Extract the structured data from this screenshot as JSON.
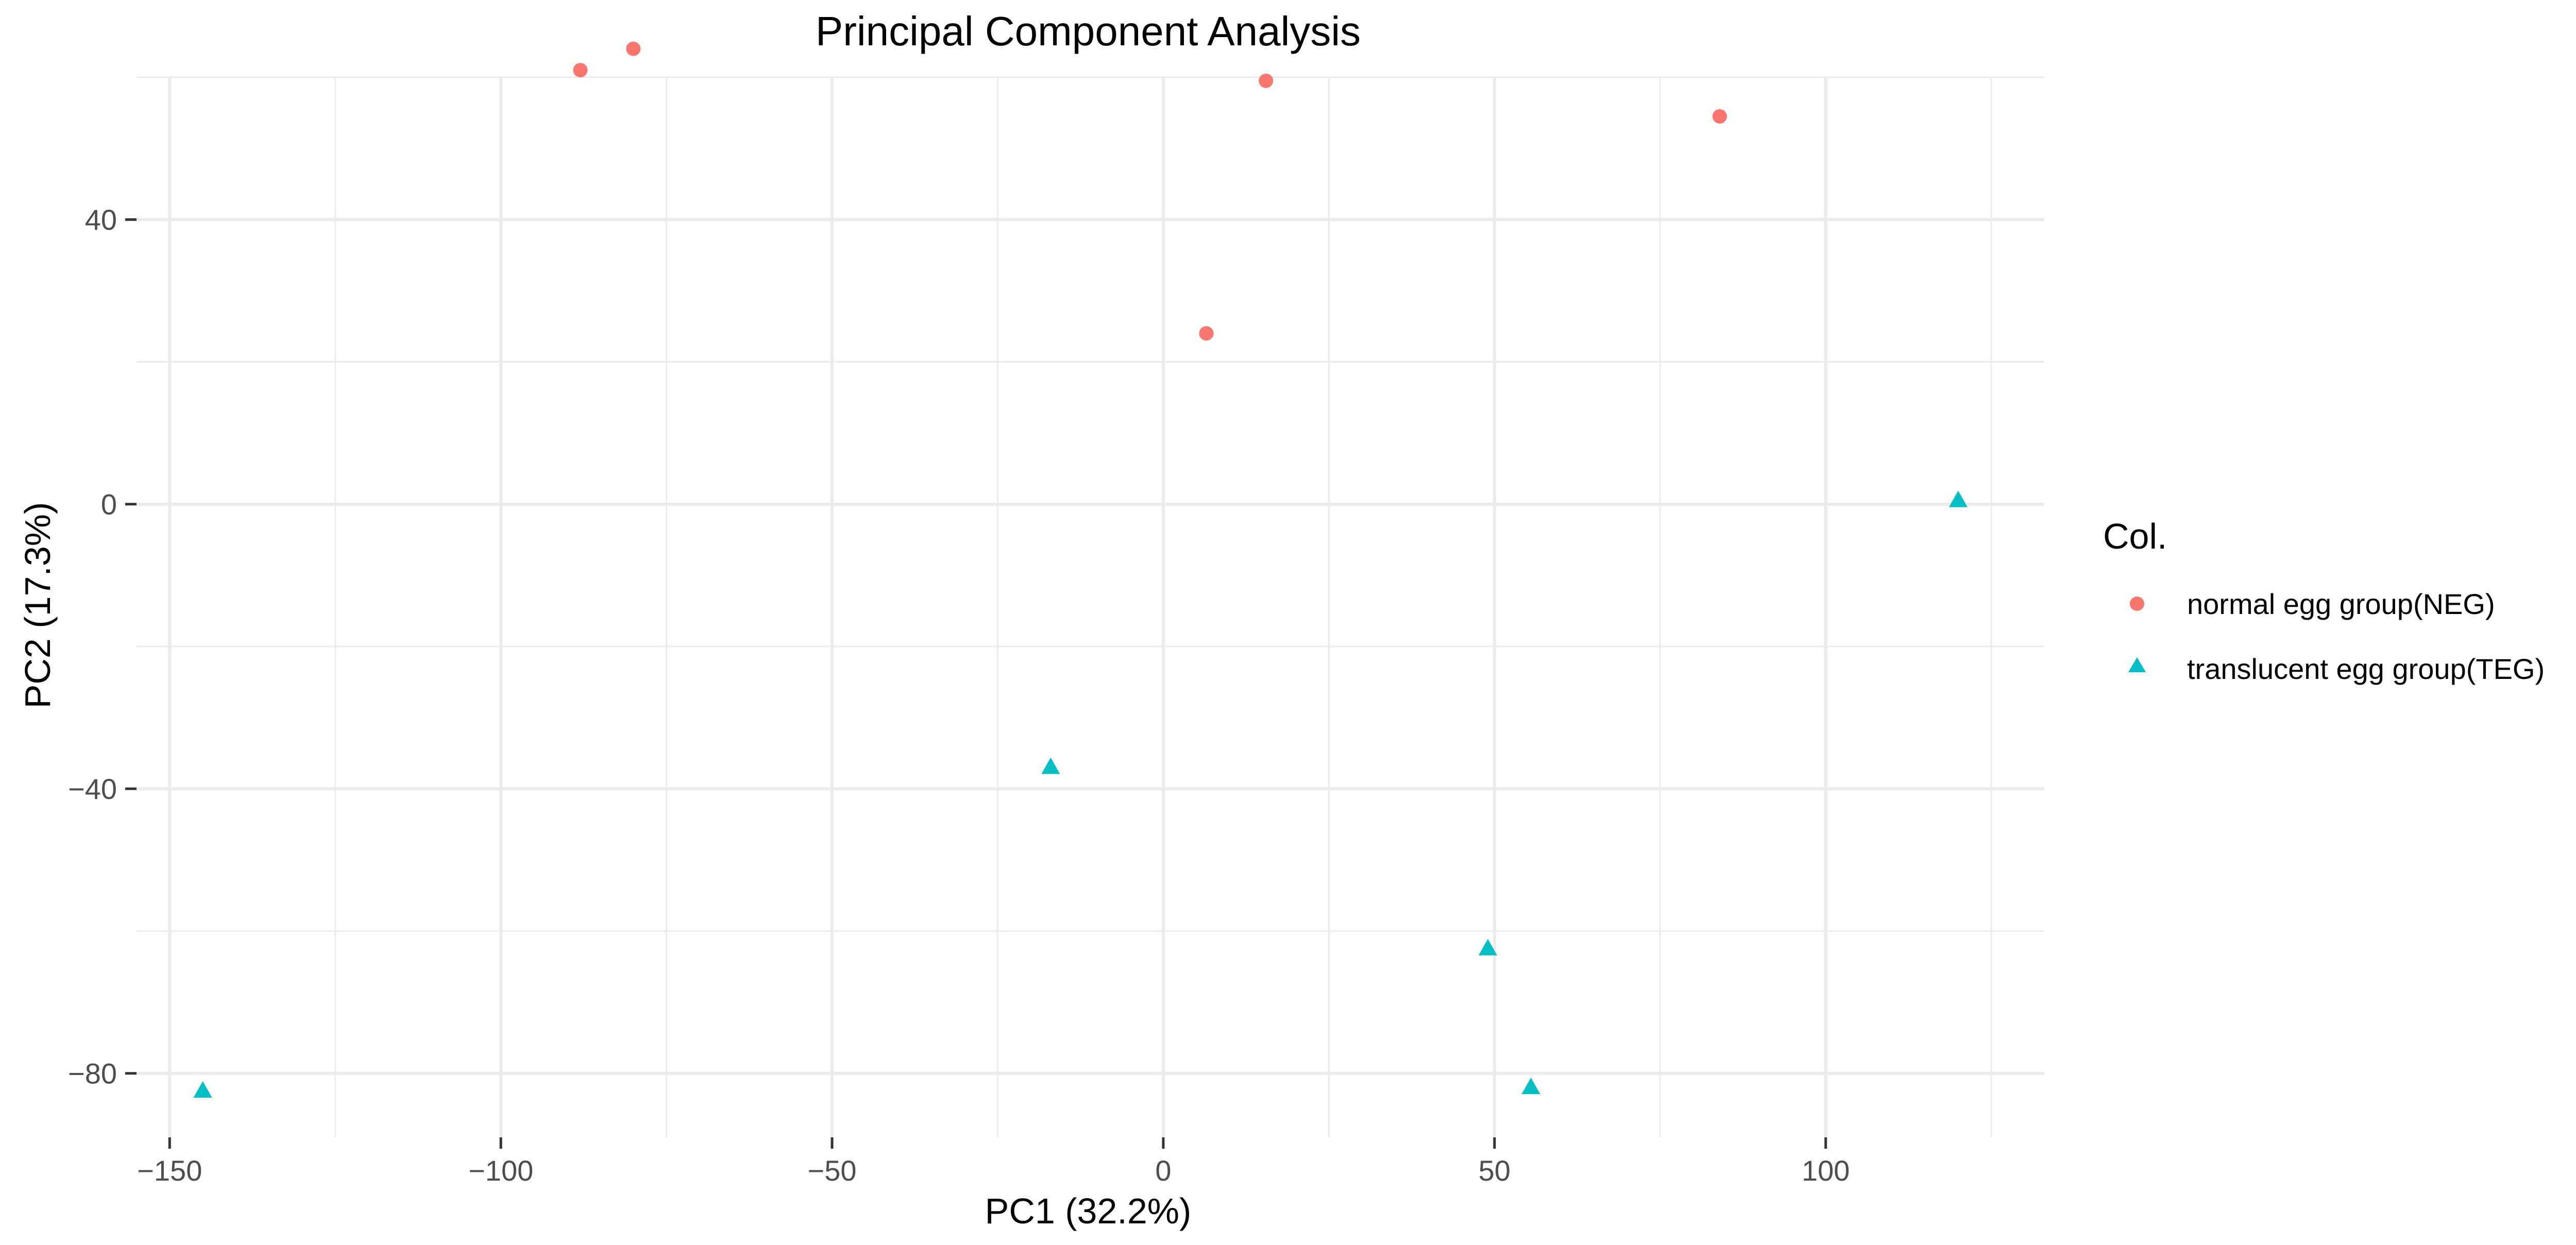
{
  "chart_data": {
    "type": "scatter",
    "title": "Principal Component Analysis",
    "xlabel": "PC1 (32.2%)",
    "ylabel": "PC2 (17.3%)",
    "xlim": [
      -155,
      133
    ],
    "ylim": [
      -89,
      60
    ],
    "x_major_ticks": [
      -150,
      -100,
      -50,
      0,
      50,
      100
    ],
    "x_tick_labels": [
      "−150",
      "−100",
      "−50",
      "0",
      "50",
      "100"
    ],
    "x_minor_ticks": [
      -125,
      -75,
      -25,
      25,
      75,
      125
    ],
    "y_major_ticks": [
      -80,
      -40,
      0,
      40
    ],
    "y_tick_labels": [
      "−80",
      "−40",
      "0",
      "40"
    ],
    "y_minor_ticks": [
      -60,
      -20,
      20,
      60
    ],
    "grid": true,
    "legend": {
      "title": "Col.",
      "placement": "right"
    },
    "series": [
      {
        "name": "normal egg group(NEG)",
        "marker": "circle",
        "color": "#F8766D",
        "points": [
          {
            "x": -88,
            "y": 61
          },
          {
            "x": -80,
            "y": 64
          },
          {
            "x": 15.5,
            "y": 59.5
          },
          {
            "x": 84,
            "y": 54.5
          },
          {
            "x": 6.5,
            "y": 24
          }
        ]
      },
      {
        "name": "translucent egg group(TEG)",
        "marker": "triangle",
        "color": "#00BFC4",
        "points": [
          {
            "x": 120,
            "y": 0.5
          },
          {
            "x": -17,
            "y": -37
          },
          {
            "x": 49,
            "y": -62.5
          },
          {
            "x": 55.5,
            "y": -82
          },
          {
            "x": -145,
            "y": -82.5
          }
        ]
      }
    ]
  }
}
